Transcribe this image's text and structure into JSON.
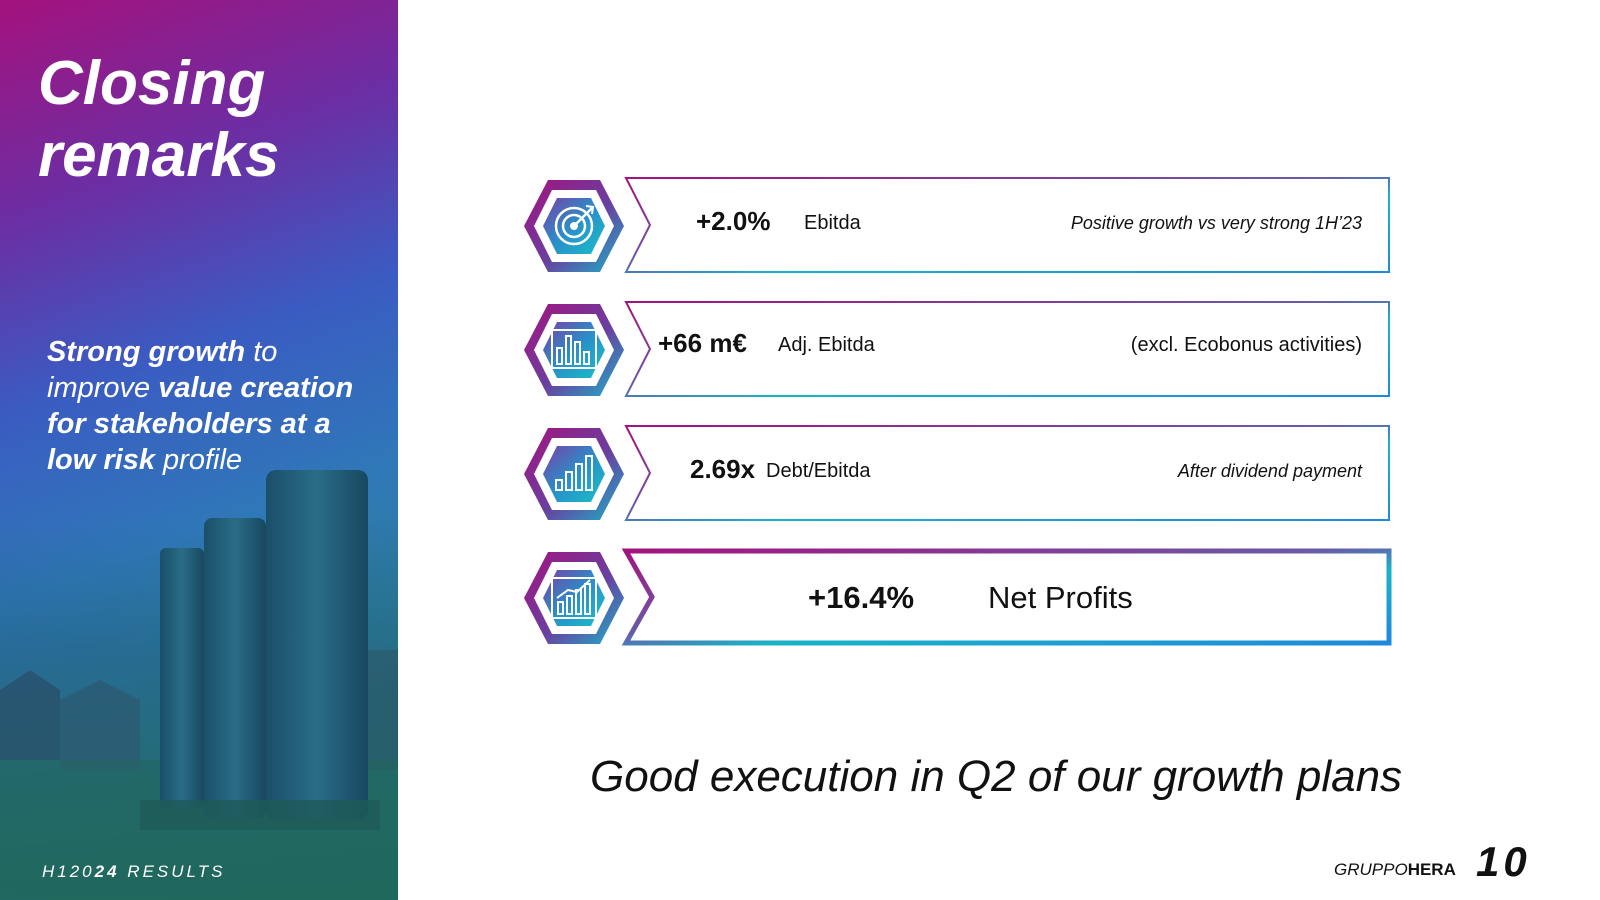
{
  "sidebar": {
    "title_line1": "Closing",
    "title_line2": "remarks",
    "text": {
      "p1_bold": "Strong growth",
      "p1_rest": " to",
      "p2_plain": "improve ",
      "p2_bold": "value creation",
      "p3_bold": "for stakeholders at a",
      "p4_bold": "low risk",
      "p4_rest": " profile"
    },
    "footer_prefix": "H120",
    "footer_bold": "24",
    "footer_suffix": " RESULTS"
  },
  "kpis": [
    {
      "value": "+2.0%",
      "label": "Ebitda",
      "note": "Positive growth vs very strong 1H’23",
      "icon": "target-icon"
    },
    {
      "value": "+66 m€",
      "label": "Adj. Ebitda",
      "note": "(excl. Ecobonus activities)",
      "icon": "bar-chart-icon"
    },
    {
      "value": "2.69x",
      "label": "Debt/Ebitda",
      "note": "After dividend payment",
      "icon": "ascending-bars-icon"
    },
    {
      "value": "+16.4%",
      "label": "Net Profits",
      "note": "",
      "icon": "growth-chart-icon"
    }
  ],
  "closing": "Good execution in Q2 of our growth plans",
  "brand": {
    "prefix": "GRUPPO",
    "bold": "HERA"
  },
  "page_number": "10",
  "colors": {
    "magenta": "#a4127e",
    "purple": "#6a3fa0",
    "teal": "#19b4c8",
    "blue": "#1f8ad8"
  }
}
